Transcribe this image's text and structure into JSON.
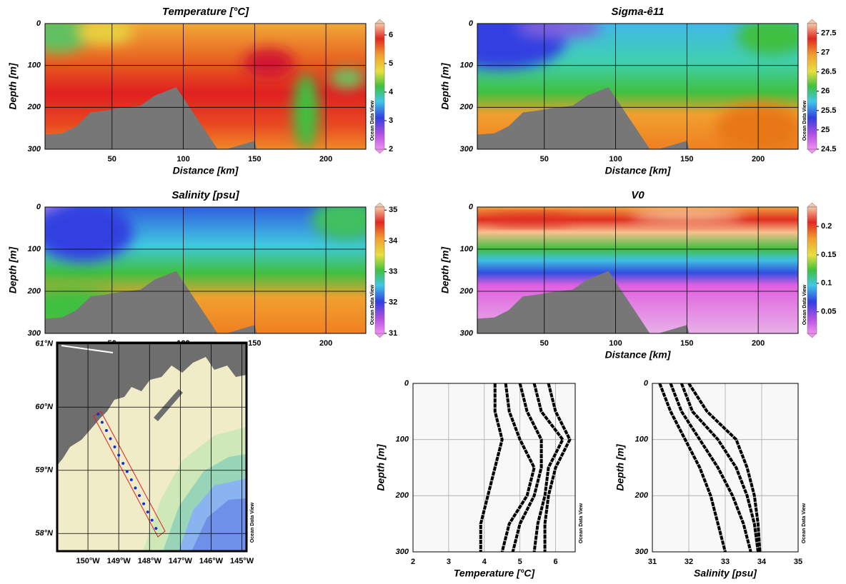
{
  "chart_data": [
    {
      "type": "section",
      "title": "Temperature [°C]",
      "xlabel": "Distance [km]",
      "ylabel": "Depth [m]",
      "xlim": [
        3,
        228
      ],
      "xticks": [
        50,
        100,
        150,
        200
      ],
      "ylim": [
        0,
        300
      ],
      "y_reversed": true,
      "yticks": [
        0,
        100,
        200,
        300
      ],
      "clim": [
        2,
        6.4
      ],
      "cticks": [
        2,
        3,
        4,
        5,
        6
      ],
      "grid": true,
      "watermark": "Ocean Data View"
    },
    {
      "type": "section",
      "title": "Sigma-ê11",
      "xlabel": "Distance [km]",
      "ylabel": "Depth [m]",
      "xlim": [
        3,
        228
      ],
      "xticks": [
        50,
        100,
        150,
        200
      ],
      "ylim": [
        0,
        300
      ],
      "y_reversed": true,
      "yticks": [
        0,
        100,
        200,
        300
      ],
      "clim": [
        24.5,
        27.75
      ],
      "cticks": [
        24.5,
        25,
        25.5,
        26,
        26.5,
        27,
        27.5
      ],
      "grid": true,
      "watermark": "Ocean Data View"
    },
    {
      "type": "section",
      "title": "Salinity [psu]",
      "ylabel": "Depth [m]",
      "xlim": [
        3,
        228
      ],
      "xticks": [
        50,
        100,
        150,
        200
      ],
      "ylim": [
        0,
        300
      ],
      "y_reversed": true,
      "yticks": [
        0,
        100,
        200,
        300
      ],
      "clim": [
        31,
        35.1
      ],
      "cticks": [
        31,
        32,
        33,
        34,
        35
      ],
      "grid": true,
      "watermark": "Ocean Data View"
    },
    {
      "type": "section",
      "title": "V0",
      "xlabel": "Distance [km]",
      "ylabel": "Depth [m]",
      "xlim": [
        3,
        228
      ],
      "xticks": [
        50,
        100,
        150,
        200
      ],
      "ylim": [
        0,
        300
      ],
      "y_reversed": true,
      "yticks": [
        0,
        100,
        200,
        300
      ],
      "clim": [
        0.012,
        0.234
      ],
      "cticks": [
        0.05,
        0.1,
        0.15,
        0.2
      ],
      "grid": true,
      "watermark": "Ocean Data View"
    },
    {
      "type": "map",
      "xlim": [
        -151,
        -144.85
      ],
      "xticks": [
        {
          "value": -150,
          "label": "150°W"
        },
        {
          "value": -149,
          "label": "149°W"
        },
        {
          "value": -148,
          "label": "148°W"
        },
        {
          "value": -147,
          "label": "147°W"
        },
        {
          "value": -146,
          "label": "146°W"
        },
        {
          "value": -145,
          "label": "145°W"
        }
      ],
      "ylim": [
        57.72,
        61.02
      ],
      "yticks": [
        {
          "value": 58,
          "label": "58°N"
        },
        {
          "value": 59,
          "label": "59°N"
        },
        {
          "value": 60,
          "label": "60°N"
        },
        {
          "value": 61,
          "label": "61°N"
        }
      ],
      "stations": {
        "color": "#1030d0",
        "x": [
          -149.67,
          -149.54,
          -149.4,
          -149.27,
          -149.13,
          -149.0,
          -148.86,
          -148.73,
          -148.59,
          -148.46,
          -148.33,
          -148.19,
          -148.06,
          -147.92,
          -147.79
        ],
        "y": [
          59.89,
          59.76,
          59.63,
          59.5,
          59.37,
          59.24,
          59.11,
          58.98,
          58.85,
          58.72,
          58.6,
          58.47,
          58.34,
          58.21,
          58.08
        ]
      },
      "grid": true,
      "watermark": "Ocean Data View"
    },
    {
      "type": "profile",
      "xlabel": "Temperature [°C]",
      "ylabel": "Depth [m]",
      "xlim": [
        2,
        6.55
      ],
      "xticks": [
        2,
        3,
        4,
        5,
        6
      ],
      "ylim": [
        0,
        300
      ],
      "y_reversed": true,
      "yticks": [
        0,
        100,
        200,
        300
      ],
      "grid": true,
      "series": [
        {
          "color": "#000000",
          "x": [
            4.3,
            4.3,
            4.5,
            4.3,
            4.1,
            3.9,
            3.9
          ],
          "y": [
            0,
            50,
            100,
            150,
            200,
            250,
            300
          ]
        },
        {
          "color": "#000000",
          "x": [
            4.6,
            4.7,
            5.0,
            5.4,
            5.2,
            4.7,
            4.5
          ],
          "y": [
            0,
            50,
            100,
            150,
            200,
            250,
            300
          ]
        },
        {
          "color": "#000000",
          "x": [
            5.0,
            5.2,
            5.6,
            5.6,
            5.4,
            5.0,
            4.8
          ],
          "y": [
            0,
            50,
            100,
            150,
            200,
            250,
            300
          ]
        },
        {
          "color": "#000000",
          "x": [
            5.4,
            5.6,
            6.2,
            5.8,
            5.7,
            5.5,
            5.4
          ],
          "y": [
            0,
            50,
            100,
            150,
            200,
            250,
            300
          ]
        },
        {
          "color": "#000000",
          "x": [
            5.8,
            6.0,
            6.4,
            6.0,
            5.8,
            5.7,
            5.7
          ],
          "y": [
            0,
            50,
            100,
            150,
            200,
            250,
            300
          ]
        }
      ],
      "watermark": "Ocean Data View"
    },
    {
      "type": "profile",
      "xlabel": "Salinity [psu]",
      "ylabel": "Depth [m]",
      "xlim": [
        31,
        35
      ],
      "xticks": [
        31,
        32,
        33,
        34,
        35
      ],
      "ylim": [
        0,
        300
      ],
      "y_reversed": true,
      "yticks": [
        0,
        100,
        200,
        300
      ],
      "grid": true,
      "series": [
        {
          "color": "#000000",
          "x": [
            31.2,
            31.5,
            31.9,
            32.3,
            32.6,
            32.8,
            33.0
          ],
          "y": [
            0,
            50,
            100,
            150,
            200,
            250,
            300
          ]
        },
        {
          "color": "#000000",
          "x": [
            31.5,
            31.8,
            32.3,
            32.8,
            33.2,
            33.5,
            33.7
          ],
          "y": [
            0,
            50,
            100,
            150,
            200,
            250,
            300
          ]
        },
        {
          "color": "#000000",
          "x": [
            31.8,
            32.1,
            32.8,
            33.3,
            33.6,
            33.8,
            33.9
          ],
          "y": [
            0,
            50,
            100,
            150,
            200,
            250,
            300
          ]
        },
        {
          "color": "#000000",
          "x": [
            32.0,
            32.5,
            33.3,
            33.6,
            33.8,
            33.9,
            33.95
          ],
          "y": [
            0,
            50,
            100,
            150,
            200,
            250,
            300
          ]
        }
      ],
      "watermark": "Ocean Data View"
    }
  ]
}
